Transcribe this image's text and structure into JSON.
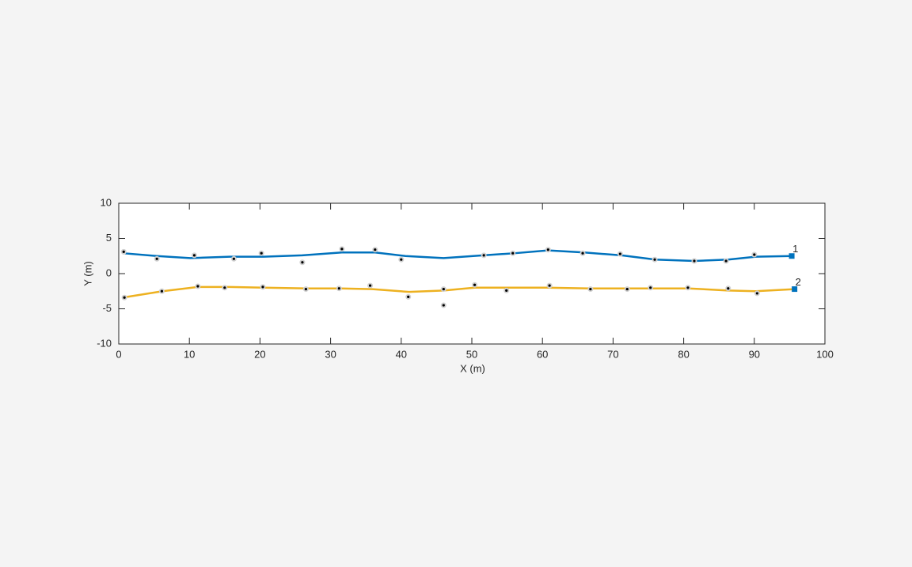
{
  "chart_data": {
    "type": "line",
    "xlabel": "X (m)",
    "ylabel": "Y (m)",
    "xlim": [
      0,
      100
    ],
    "ylim": [
      -10,
      10
    ],
    "xticks": [
      0,
      10,
      20,
      30,
      40,
      50,
      60,
      70,
      80,
      90,
      100
    ],
    "yticks": [
      -10,
      -5,
      0,
      5,
      10
    ],
    "series": [
      {
        "name": "1",
        "color": "#0072bd",
        "x": [
          0.6,
          5.4,
          10.1,
          15.7,
          20.5,
          26.0,
          31.6,
          36.3,
          40.6,
          46.0,
          51.6,
          56.1,
          60.8,
          65.9,
          71.2,
          76.0,
          81.5,
          86.3,
          90.2,
          95.3
        ],
        "values": [
          2.9,
          2.5,
          2.2,
          2.4,
          2.4,
          2.6,
          3.0,
          3.0,
          2.5,
          2.2,
          2.6,
          2.9,
          3.3,
          3.0,
          2.6,
          2.0,
          1.8,
          2.0,
          2.4,
          2.5
        ]
      },
      {
        "name": "2",
        "color": "#edb120",
        "x": [
          0.6,
          6.2,
          11.2,
          15.7,
          20.5,
          26.3,
          31.4,
          35.9,
          41.1,
          46.0,
          50.4,
          54.9,
          60.5,
          66.7,
          71.7,
          75.7,
          80.7,
          86.3,
          90.2,
          95.7
        ],
        "values": [
          -3.4,
          -2.5,
          -1.9,
          -1.9,
          -2.0,
          -2.1,
          -2.1,
          -2.2,
          -2.6,
          -2.4,
          -2.0,
          -2.0,
          -2.0,
          -2.1,
          -2.1,
          -2.1,
          -2.1,
          -2.4,
          -2.5,
          -2.2
        ]
      }
    ],
    "detections": {
      "x": [
        0.7,
        5.4,
        10.7,
        16.3,
        20.2,
        26.0,
        31.6,
        36.3,
        40.0,
        51.7,
        55.8,
        60.8,
        65.7,
        71.0,
        75.9,
        81.5,
        86.0,
        90.0,
        0.8,
        6.1,
        11.2,
        15.0,
        20.4,
        26.5,
        31.2,
        35.6,
        41.0,
        46.0,
        46.0,
        50.4,
        54.9,
        61.0,
        66.8,
        72.0,
        75.3,
        80.6,
        86.3,
        90.4
      ],
      "y": [
        3.1,
        2.1,
        2.6,
        2.1,
        2.9,
        1.6,
        3.5,
        3.4,
        2.0,
        2.6,
        2.9,
        3.4,
        2.9,
        2.8,
        2.0,
        1.8,
        1.8,
        2.7,
        -3.4,
        -2.5,
        -1.8,
        -2.0,
        -1.9,
        -2.2,
        -2.1,
        -1.7,
        -3.3,
        -4.5,
        -2.2,
        -1.6,
        -2.4,
        -1.7,
        -2.2,
        -2.2,
        -2.0,
        -2.0,
        -2.1,
        -2.8
      ]
    }
  }
}
